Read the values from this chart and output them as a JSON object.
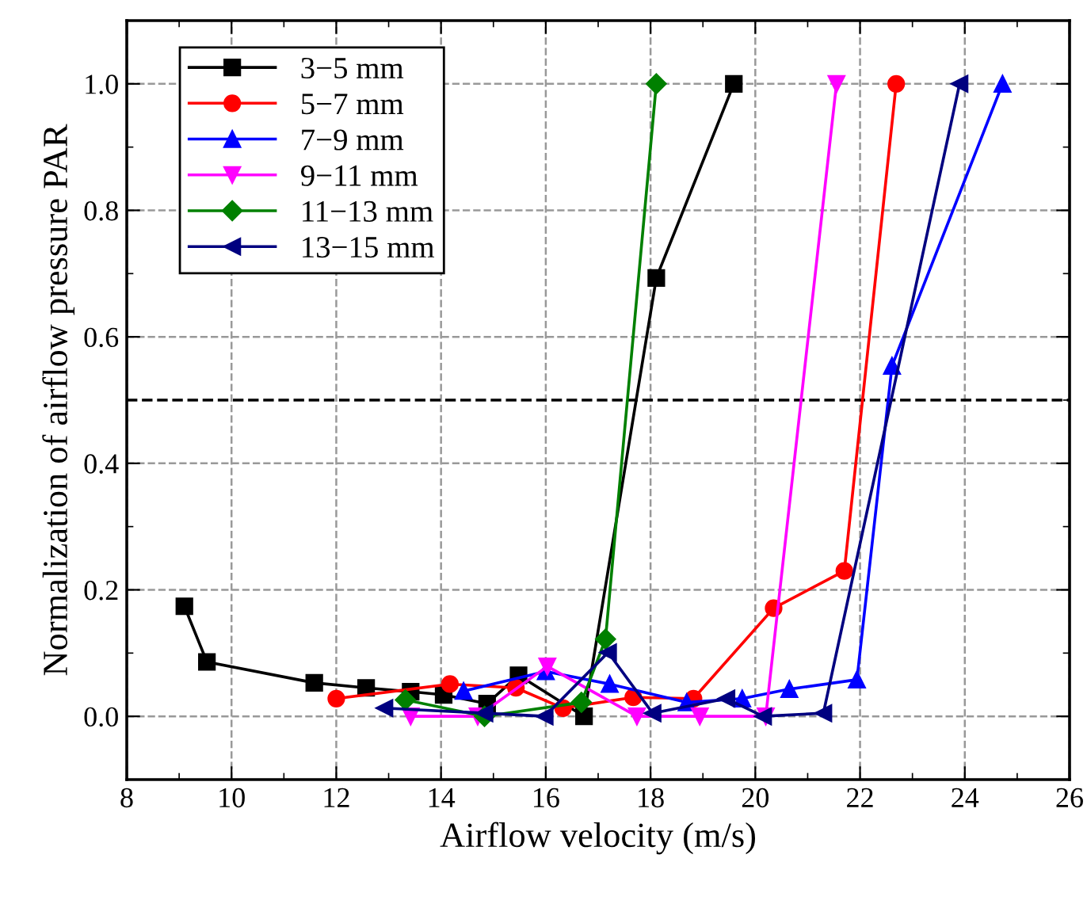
{
  "chart_data": {
    "type": "line",
    "xlabel": "Airflow velocity (m/s)",
    "ylabel": "Normalization of airflow pressure PAR",
    "xlim": [
      8,
      26
    ],
    "xticks": [
      8,
      10,
      12,
      14,
      16,
      18,
      20,
      22,
      24,
      26
    ],
    "ylim": [
      -0.1,
      1.1
    ],
    "yticks": [
      {
        "value": 0,
        "label": "0.0"
      },
      0.2,
      0.4,
      0.6,
      0.8,
      {
        "value": 1,
        "label": "1.0"
      }
    ],
    "grid": true,
    "legend": "top left",
    "line_style": "solid",
    "ref_lines": [
      {
        "axis": "y",
        "value": 0.5,
        "color": "#000000",
        "line_style": "dashed"
      }
    ],
    "series": [
      {
        "name": "3−5 mm",
        "color": "#000000",
        "marker": "square",
        "x": [
          9.1,
          9.53,
          11.58,
          12.57,
          13.42,
          14.05,
          14.88,
          15.48,
          16.73,
          18.11,
          19.59
        ],
        "values": [
          0.174,
          0.086,
          0.053,
          0.045,
          0.039,
          0.034,
          0.02,
          0.065,
          0,
          0.693,
          1.0
        ]
      },
      {
        "name": "5−7 mm",
        "color": "#ff0000",
        "marker": "circle",
        "x": [
          12.0,
          14.17,
          15.43,
          16.33,
          17.67,
          18.82,
          20.35,
          21.7,
          22.69
        ],
        "values": [
          0.028,
          0.051,
          0.045,
          0.013,
          0.03,
          0.028,
          0.171,
          0.23,
          1.0
        ]
      },
      {
        "name": "7−9 mm",
        "color": "#0000ff",
        "marker": "triangle",
        "x": [
          14.43,
          16.0,
          17.22,
          18.69,
          19.75,
          20.65,
          21.94,
          22.61,
          24.72
        ],
        "values": [
          0.04,
          0.071,
          0.051,
          0.022,
          0.028,
          0.043,
          0.058,
          0.554,
          1.0
        ]
      },
      {
        "name": "9−11 mm",
        "color": "#ff00ff",
        "marker": "triangle_down",
        "x": [
          13.42,
          14.7,
          16.03,
          17.74,
          18.94,
          20.2,
          21.55
        ],
        "values": [
          0,
          0,
          0.079,
          0,
          0,
          0,
          1.0
        ]
      },
      {
        "name": "11−13 mm",
        "color": "#008000",
        "marker": "diamond",
        "x": [
          13.32,
          14.83,
          16.68,
          17.14,
          18.11
        ],
        "values": [
          0.026,
          0,
          0.022,
          0.122,
          1.0
        ]
      },
      {
        "name": "13−15 mm",
        "color": "#000080",
        "marker": "triangle_left",
        "x": [
          12.92,
          14.83,
          15.98,
          17.19,
          18.04,
          19.45,
          20.15,
          21.3,
          23.9
        ],
        "values": [
          0.013,
          0.005,
          0,
          0.101,
          0.005,
          0.028,
          0,
          0.005,
          1.0
        ]
      }
    ]
  }
}
